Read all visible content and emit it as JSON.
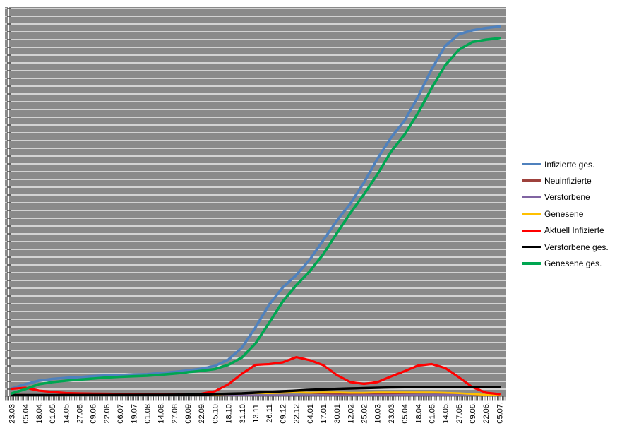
{
  "chart_data": {
    "type": "line",
    "title": "",
    "xlabel": "",
    "ylabel": "",
    "y_axis_note": "y-axis has tick marks and gridlines only, no value labels; values below are in gridline units",
    "ylim": [
      0,
      50
    ],
    "grid": true,
    "legend_position": "right",
    "plot_bg_color": "#8A8A8A",
    "gridline_color": "#FFFFFF",
    "axis_color": "#404040",
    "categories": [
      "23.03.",
      "05.04.",
      "18.04.",
      "01.05.",
      "14.05.",
      "27.05.",
      "09.06.",
      "22.06.",
      "06.07.",
      "19.07.",
      "01.08.",
      "14.08.",
      "27.08.",
      "09.09.",
      "22.09.",
      "05.10.",
      "18.10.",
      "31.10.",
      "13.11.",
      "26.11.",
      "09.12.",
      "22.12.",
      "04.01.",
      "17.01.",
      "30.01.",
      "12.02.",
      "25.02.",
      "10.03.",
      "23.03.",
      "05.04.",
      "18.04.",
      "01.05.",
      "14.05.",
      "27.05.",
      "09.06.",
      "22.06.",
      "05.07."
    ],
    "series": [
      {
        "name": "Infizierte ges.",
        "color": "#4F81BD",
        "values": [
          0.91,
          1.45,
          1.91,
          2.14,
          2.27,
          2.36,
          2.5,
          2.59,
          2.64,
          2.7,
          2.75,
          2.89,
          3.05,
          3.23,
          3.45,
          3.82,
          4.64,
          6.18,
          8.8,
          11.7,
          13.9,
          15.5,
          17.5,
          20.0,
          22.5,
          24.7,
          27.4,
          30.5,
          33.2,
          35.4,
          38.5,
          42.0,
          45.0,
          46.5,
          47.0,
          47.3,
          47.5
        ]
      },
      {
        "name": "Neuinfizierte",
        "color": "#9E413C",
        "values": [
          0.15,
          0.12,
          0.08,
          0.08,
          0.08,
          0.08,
          0.08,
          0.08,
          0.08,
          0.08,
          0.08,
          0.08,
          0.08,
          0.08,
          0.1,
          0.15,
          0.25,
          0.3,
          0.28,
          0.3,
          0.32,
          0.38,
          0.3,
          0.28,
          0.22,
          0.18,
          0.18,
          0.22,
          0.26,
          0.3,
          0.33,
          0.35,
          0.3,
          0.22,
          0.12,
          0.08,
          0.06
        ]
      },
      {
        "name": "Verstorbene",
        "color": "#8064A2",
        "values": [
          0.04,
          0.04,
          0.04,
          0.04,
          0.04,
          0.04,
          0.04,
          0.04,
          0.04,
          0.04,
          0.04,
          0.04,
          0.04,
          0.04,
          0.04,
          0.04,
          0.04,
          0.04,
          0.04,
          0.04,
          0.04,
          0.04,
          0.04,
          0.04,
          0.04,
          0.04,
          0.06,
          0.06,
          0.06,
          0.06,
          0.06,
          0.08,
          0.1,
          0.12,
          0.15,
          0.17,
          0.18
        ]
      },
      {
        "name": "Genesene",
        "color": "#FFC000",
        "values": [
          0.05,
          0.05,
          0.05,
          0.05,
          0.05,
          0.05,
          0.05,
          0.05,
          0.05,
          0.05,
          0.05,
          0.05,
          0.05,
          0.05,
          0.06,
          0.1,
          0.2,
          0.25,
          0.3,
          0.3,
          0.35,
          0.4,
          0.35,
          0.4,
          0.4,
          0.35,
          0.35,
          0.4,
          0.4,
          0.4,
          0.4,
          0.4,
          0.35,
          0.3,
          0.2,
          0.1,
          0.05
        ]
      },
      {
        "name": "Aktuell Infizierte",
        "color": "#FF0000",
        "values": [
          0.86,
          1.0,
          0.64,
          0.45,
          0.32,
          0.27,
          0.25,
          0.23,
          0.21,
          0.2,
          0.18,
          0.18,
          0.18,
          0.18,
          0.23,
          0.55,
          1.45,
          2.82,
          3.95,
          4.05,
          4.27,
          4.95,
          4.55,
          3.91,
          2.64,
          1.73,
          1.5,
          1.73,
          2.45,
          3.14,
          3.86,
          4.05,
          3.55,
          2.36,
          1.09,
          0.36,
          0.18
        ]
      },
      {
        "name": "Verstorbene ges.",
        "color": "#000000",
        "values": [
          0.05,
          0.05,
          0.05,
          0.05,
          0.06,
          0.06,
          0.07,
          0.07,
          0.08,
          0.08,
          0.09,
          0.1,
          0.11,
          0.12,
          0.14,
          0.18,
          0.23,
          0.27,
          0.36,
          0.45,
          0.55,
          0.64,
          0.73,
          0.79,
          0.85,
          0.91,
          0.95,
          1.0,
          1.04,
          1.06,
          1.09,
          1.1,
          1.11,
          1.12,
          1.12,
          1.12,
          1.12
        ]
      },
      {
        "name": "Genesene ges.",
        "color": "#00A651",
        "values": [
          0.27,
          0.82,
          1.45,
          1.73,
          1.91,
          2.05,
          2.18,
          2.32,
          2.41,
          2.48,
          2.55,
          2.67,
          2.82,
          3.0,
          3.18,
          3.41,
          3.95,
          4.91,
          6.73,
          9.36,
          12.1,
          14.2,
          16.0,
          18.2,
          20.9,
          23.5,
          25.9,
          28.5,
          31.4,
          33.6,
          36.4,
          39.6,
          42.5,
          44.5,
          45.5,
          45.8,
          46.0
        ]
      }
    ]
  }
}
